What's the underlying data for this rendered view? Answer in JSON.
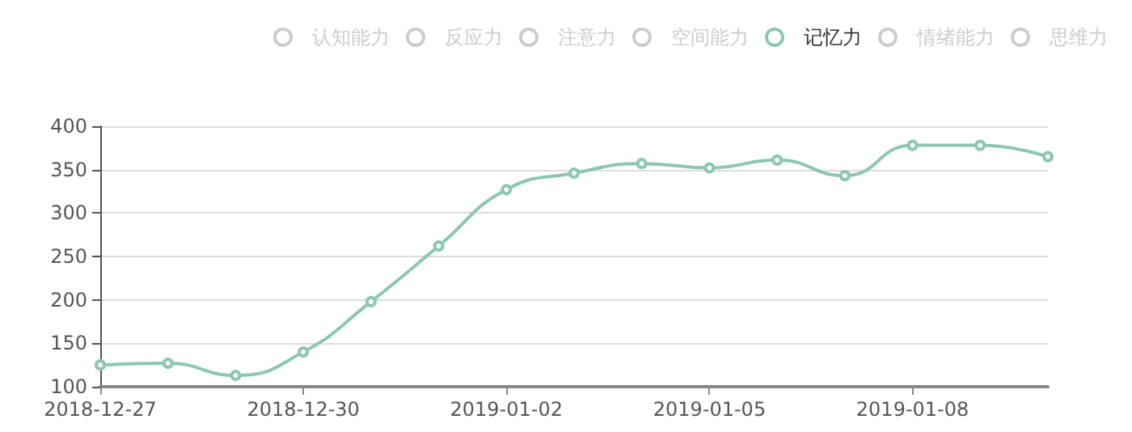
{
  "chart_data": {
    "type": "line",
    "categories": [
      "2018-12-27",
      null,
      null,
      "2018-12-30",
      null,
      null,
      "2019-01-02",
      null,
      null,
      "2019-01-05",
      null,
      null,
      "2019-01-08",
      null,
      null
    ],
    "series": [
      {
        "name": "认知能力",
        "color": "#cccccc",
        "values": [
          null,
          null,
          null,
          null,
          null,
          null,
          null,
          null,
          null,
          null,
          null,
          null,
          null,
          null,
          null
        ]
      },
      {
        "name": "反应力",
        "color": "#cccccc",
        "values": [
          null,
          null,
          null,
          null,
          null,
          null,
          null,
          null,
          null,
          null,
          null,
          null,
          null,
          null,
          null
        ]
      },
      {
        "name": "注意力",
        "color": "#cccccc",
        "values": [
          null,
          null,
          null,
          null,
          null,
          null,
          null,
          null,
          null,
          null,
          null,
          null,
          null,
          null,
          null
        ]
      },
      {
        "name": "空间能力",
        "color": "#cccccc",
        "values": [
          null,
          null,
          null,
          null,
          null,
          null,
          null,
          null,
          null,
          null,
          null,
          null,
          null,
          null,
          null
        ]
      },
      {
        "name": "记忆力",
        "color": "#8cc7b0",
        "values": [
          125,
          127,
          113,
          140,
          198,
          262,
          327,
          346,
          357,
          352,
          361,
          343,
          378,
          378,
          365
        ]
      },
      {
        "name": "情绪能力",
        "color": "#cccccc",
        "values": [
          null,
          null,
          null,
          null,
          null,
          null,
          null,
          null,
          null,
          null,
          null,
          null,
          null,
          null,
          null
        ]
      },
      {
        "name": "思维力",
        "color": "#cccccc",
        "values": [
          null,
          null,
          null,
          null,
          null,
          null,
          null,
          null,
          null,
          null,
          null,
          null,
          null,
          null,
          null
        ]
      }
    ],
    "ylim": [
      100,
      400
    ],
    "yticks": [
      100,
      150,
      200,
      250,
      300,
      350,
      400
    ],
    "grid": "y",
    "legend": "top right",
    "marker": "circle",
    "line_style": "solid"
  }
}
